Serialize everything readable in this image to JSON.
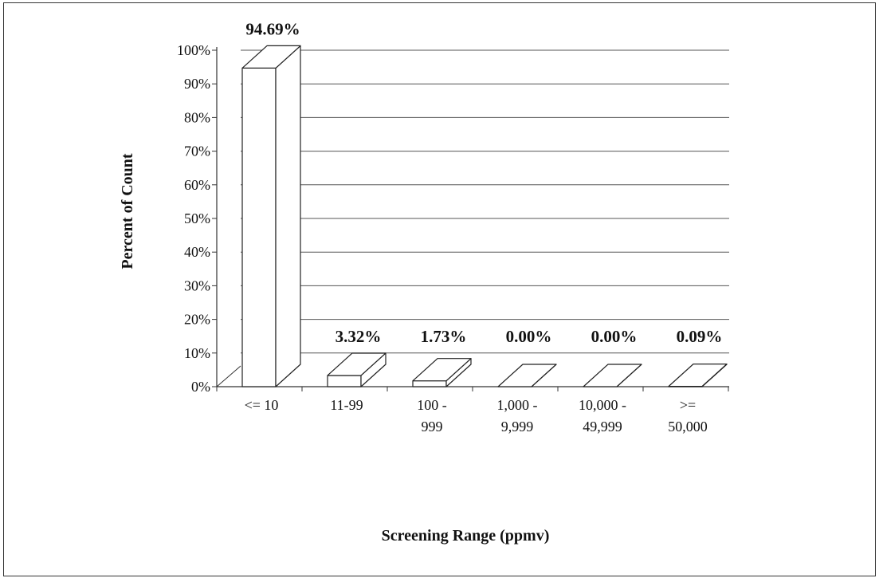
{
  "chart_data": {
    "type": "bar",
    "categories": [
      [
        "<= 10"
      ],
      [
        "11-99"
      ],
      [
        "100 -",
        "999"
      ],
      [
        "1,000 -",
        "9,999"
      ],
      [
        "10,000 -",
        "49,999"
      ],
      [
        ">=",
        "50,000"
      ]
    ],
    "values": [
      94.69,
      3.32,
      1.73,
      0.0,
      0.0,
      0.09
    ],
    "data_labels": [
      "94.69%",
      "3.32%",
      "1.73%",
      "0.00%",
      "0.00%",
      "0.09%"
    ],
    "yticks": [
      "0%",
      "10%",
      "20%",
      "30%",
      "40%",
      "50%",
      "60%",
      "70%",
      "80%",
      "90%",
      "100%"
    ],
    "ylim": [
      0,
      100
    ],
    "xlabel": "Screening Range (ppmv)",
    "ylabel": "Percent of Count",
    "grid": true,
    "style": "3d-bar"
  }
}
